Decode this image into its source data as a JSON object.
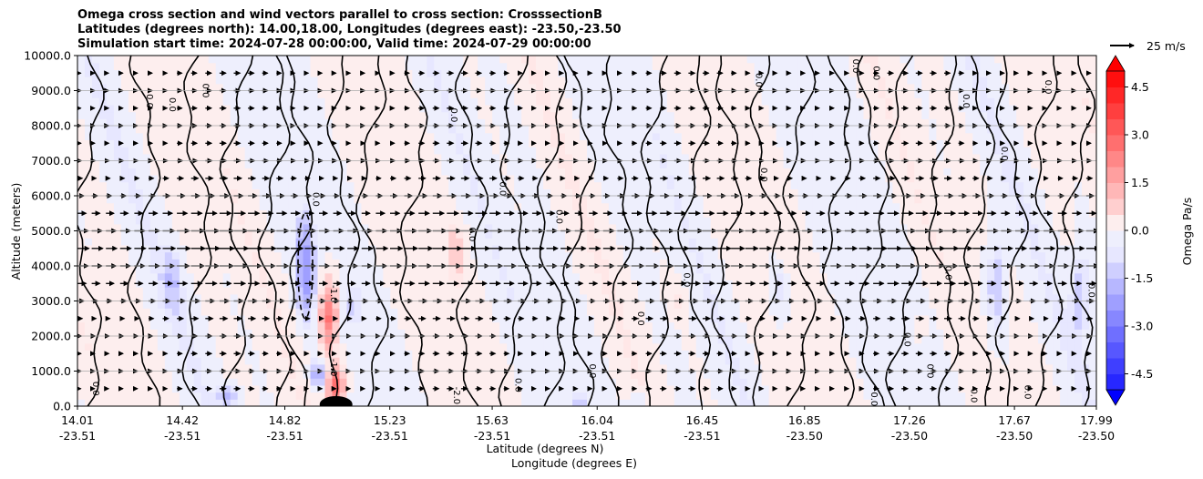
{
  "chart_data": {
    "type": "heatmap",
    "title_lines": [
      "Omega cross section and wind vectors parallel to cross section: CrosssectionB",
      "Latitudes (degrees north): 14.00,18.00, Longitudes (degrees east): -23.50,-23.50",
      "Simulation start time: 2024-07-28 00:00:00, Valid time: 2024-07-29 00:00:00"
    ],
    "ylabel": "Altitude (meters)",
    "xlabel_lines": [
      "Latitude (degrees N)",
      "Longitude (degrees E)"
    ],
    "yticks": [
      "0.0",
      "1000.0",
      "2000.0",
      "3000.0",
      "4000.0",
      "5000.0",
      "6000.0",
      "7000.0",
      "8000.0",
      "9000.0",
      "10000.0"
    ],
    "ylim": [
      0,
      10000
    ],
    "xlim": [
      14.01,
      17.99
    ],
    "xticks": [
      {
        "lat": "14.01",
        "lon": "-23.51"
      },
      {
        "lat": "14.42",
        "lon": "-23.51"
      },
      {
        "lat": "14.82",
        "lon": "-23.51"
      },
      {
        "lat": "15.23",
        "lon": "-23.51"
      },
      {
        "lat": "15.63",
        "lon": "-23.51"
      },
      {
        "lat": "16.04",
        "lon": "-23.51"
      },
      {
        "lat": "16.45",
        "lon": "-23.51"
      },
      {
        "lat": "16.85",
        "lon": "-23.50"
      },
      {
        "lat": "17.26",
        "lon": "-23.50"
      },
      {
        "lat": "17.67",
        "lon": "-23.50"
      },
      {
        "lat": "17.99",
        "lon": "-23.50"
      }
    ],
    "grid": "horizontal",
    "colorbar": {
      "label": "Omega Pa/s",
      "ticks": [
        "4.5",
        "3.0",
        "1.5",
        "0.0",
        "-1.5",
        "-3.0",
        "-4.5"
      ],
      "range": [
        -5.0,
        5.0
      ],
      "extend": "both",
      "positive_color": "#ff0000",
      "negative_color": "#0000ff",
      "neutral_color": "#ffffff"
    },
    "quiver_key": {
      "label": "25 m/s"
    },
    "contour_labels": [
      "0.0",
      "-1.0",
      "-2.0",
      "1.0"
    ],
    "features": [
      {
        "lat": 14.9,
        "z_low": 2500,
        "z_high": 5500,
        "omega": -2.0
      },
      {
        "lat": 14.99,
        "z_low": 1500,
        "z_high": 3600,
        "omega": 3.0
      },
      {
        "lat": 15.02,
        "z_low": 0,
        "z_high": 1200,
        "omega": 3.5
      },
      {
        "lat": 14.95,
        "z_low": 500,
        "z_high": 1300,
        "omega": -2.0
      },
      {
        "lat": 14.6,
        "z_low": 0,
        "z_high": 600,
        "omega": -1.5
      },
      {
        "lat": 14.38,
        "z_low": 2800,
        "z_high": 4500,
        "omega": -1.0
      },
      {
        "lat": 15.08,
        "z_low": 2200,
        "z_high": 3300,
        "omega": -0.8
      },
      {
        "lat": 15.49,
        "z_low": 3500,
        "z_high": 5300,
        "omega": 0.8
      },
      {
        "lat": 16.75,
        "z_low": 2600,
        "z_high": 4200,
        "omega": -0.8
      },
      {
        "lat": 17.3,
        "z_low": 1800,
        "z_high": 2800,
        "omega": 0.6
      },
      {
        "lat": 17.6,
        "z_low": 2000,
        "z_high": 5000,
        "omega": -1.2
      },
      {
        "lat": 17.93,
        "z_low": 2000,
        "z_high": 4800,
        "omega": -1.0
      },
      {
        "lat": 16.35,
        "z_low": 2600,
        "z_high": 3600,
        "omega": 0.6
      },
      {
        "lat": 15.97,
        "z_low": 0,
        "z_high": 300,
        "omega": -1.0
      },
      {
        "lat": 16.2,
        "z_low": 0,
        "z_high": 300,
        "omega": -1.0
      }
    ]
  }
}
